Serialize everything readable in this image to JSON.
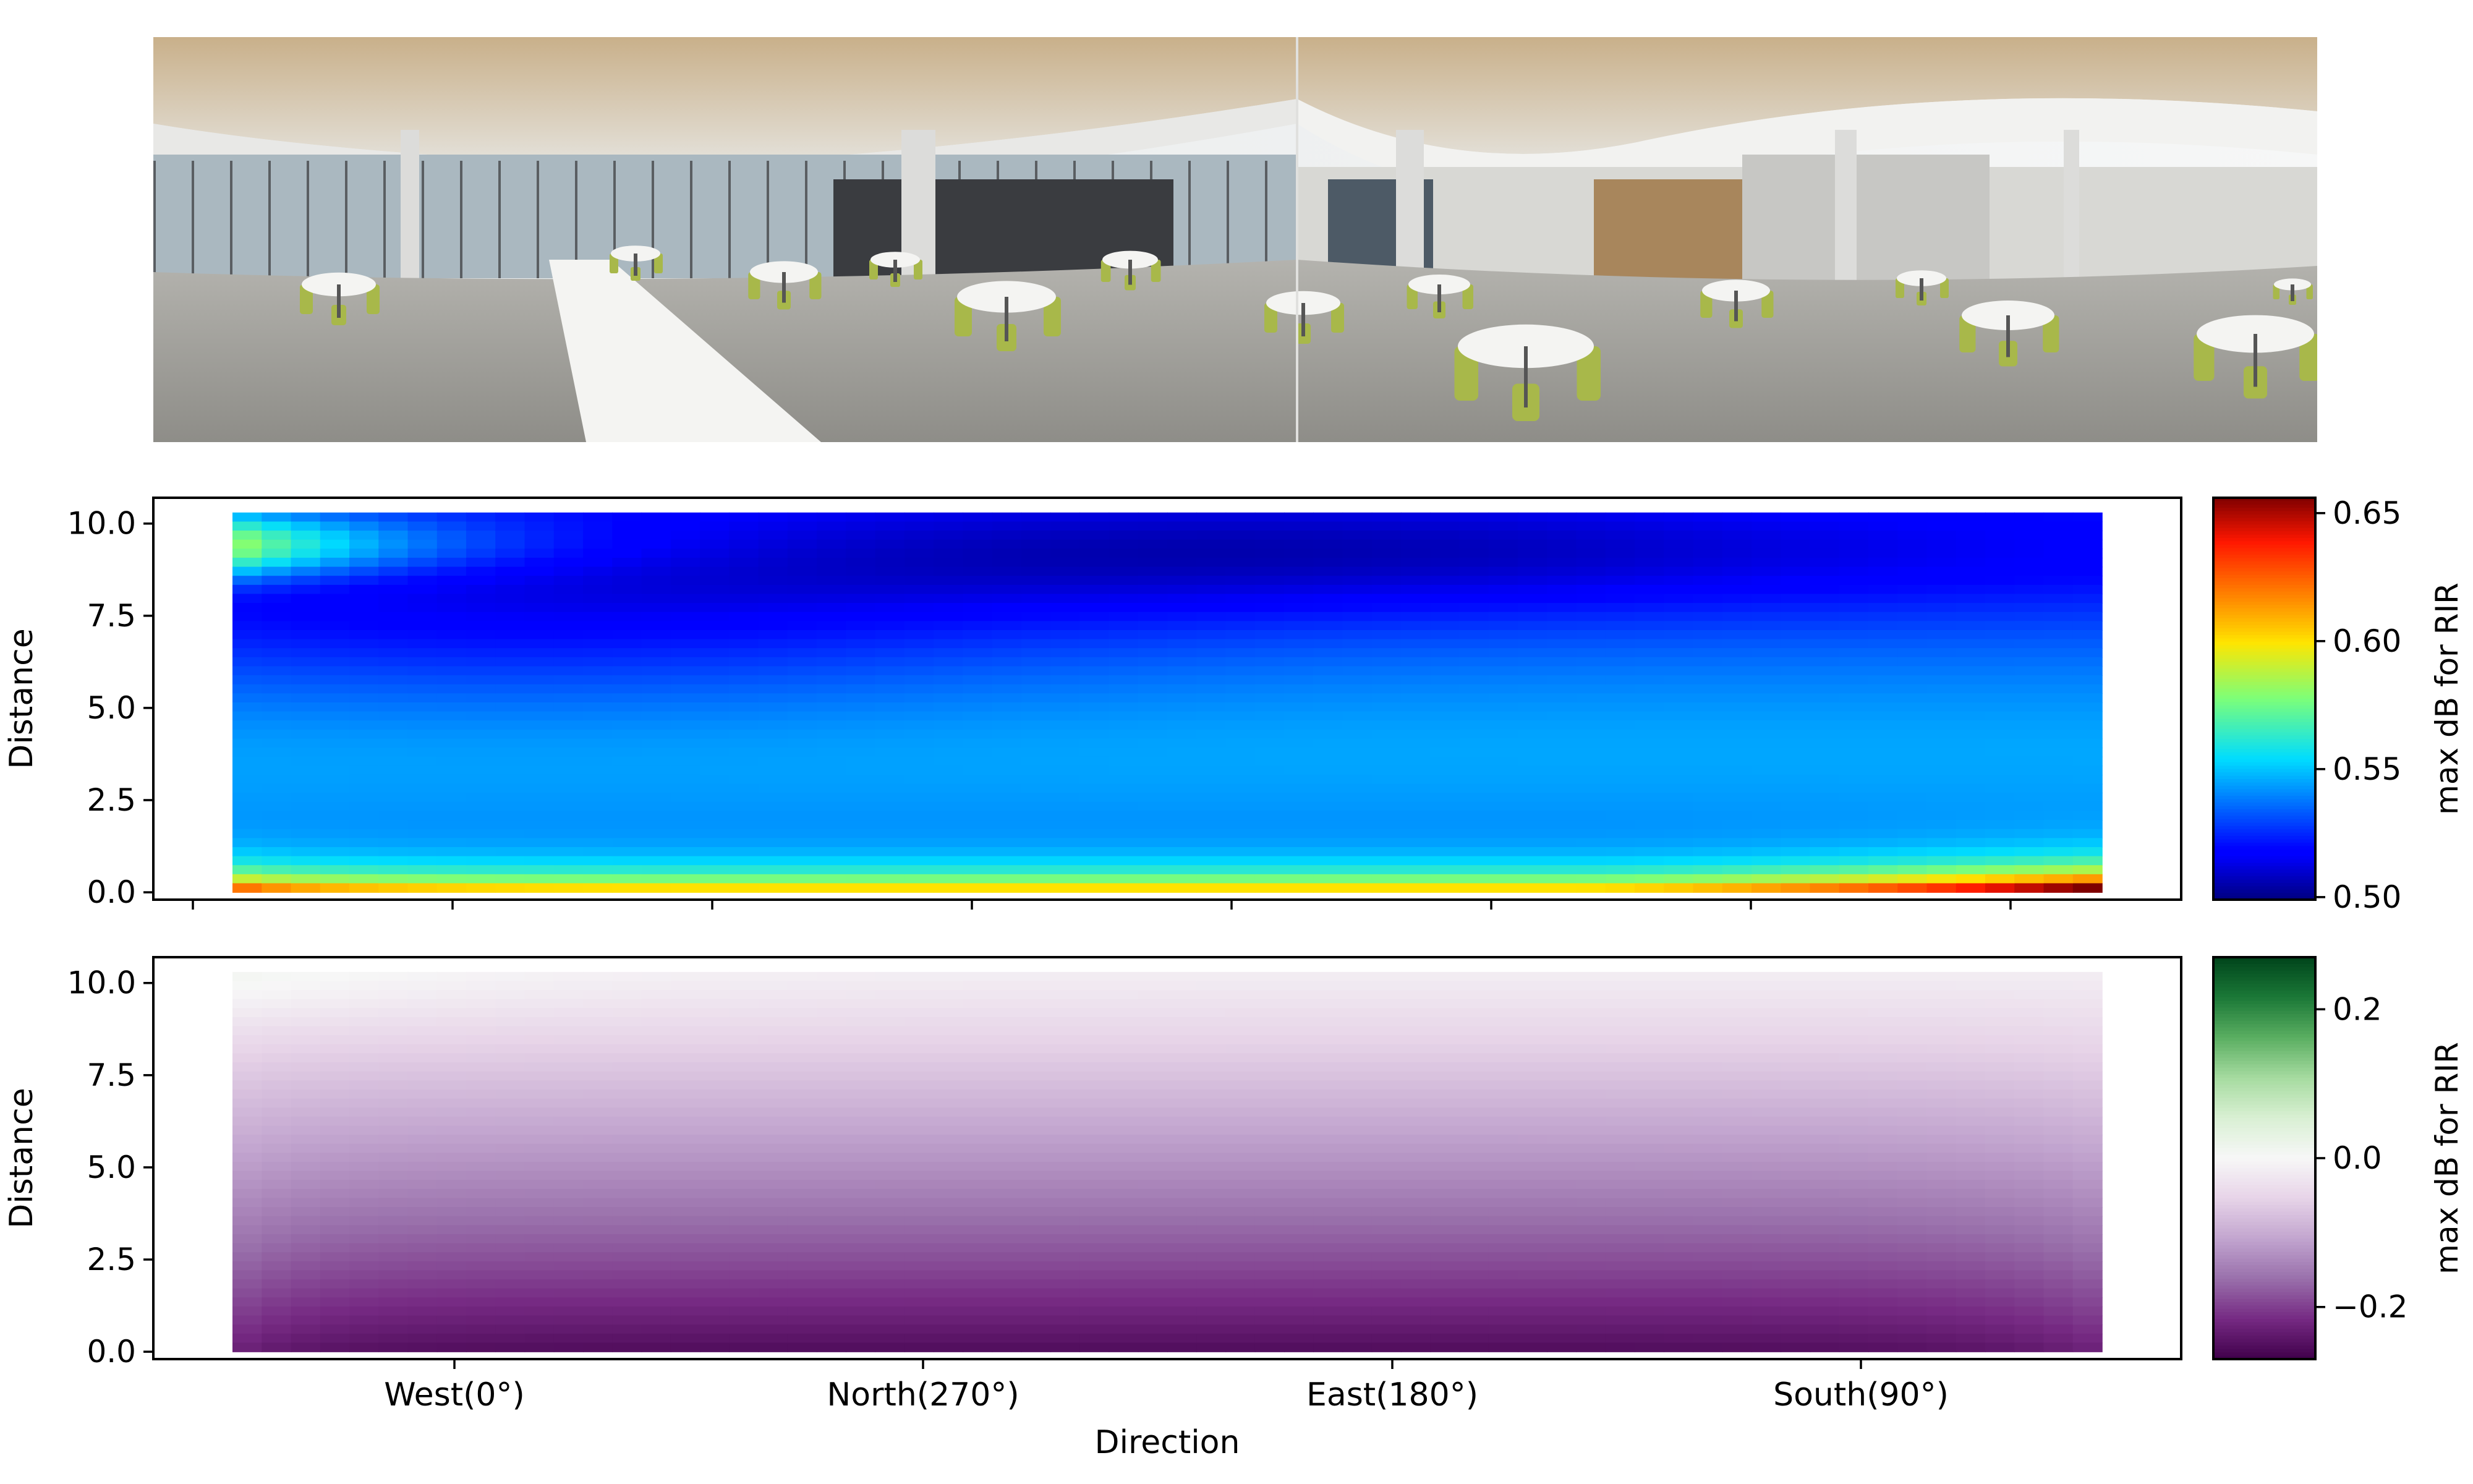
{
  "panorama": {
    "description_icon": "atrium-panorama-photo",
    "colors": {
      "ceiling": "#d9d6cf",
      "wood": "#a8865c",
      "wall": "#e8e8e6",
      "glass": "#aab8c0",
      "floor": "#9e9d98",
      "chair": "#a8b84a",
      "table": "#f4f4f2",
      "column": "#dcdcda",
      "dark": "#3a3c40"
    }
  },
  "chart_data": [
    {
      "type": "heatmap",
      "ylabel": "Distance",
      "xlabel": "",
      "x_ticks": [
        "",
        "",
        "",
        "",
        "",
        "",
        "",
        ""
      ],
      "y_ticks": [
        "0.0",
        "2.5",
        "5.0",
        "7.5",
        "10.0"
      ],
      "y_tick_values": [
        0,
        2.5,
        5,
        7.5,
        10
      ],
      "ylim": [
        -0.2,
        10.7
      ],
      "colormap": "jet",
      "colorbar": {
        "label": "max dB for RIR",
        "range": [
          0.499,
          0.656
        ],
        "ticks": [
          "0.50",
          "0.55",
          "0.60",
          "0.65"
        ],
        "tick_values": [
          0.5,
          0.55,
          0.6,
          0.65
        ]
      },
      "grid": false
    },
    {
      "type": "heatmap",
      "ylabel": "Distance",
      "xlabel": "Direction",
      "x_ticks": [
        "West(0°)",
        "North(270°)",
        "East(180°)",
        "South(90°)"
      ],
      "y_ticks": [
        "0.0",
        "2.5",
        "5.0",
        "7.5",
        "10.0"
      ],
      "y_tick_values": [
        0,
        2.5,
        5,
        7.5,
        10
      ],
      "ylim": [
        -0.2,
        10.7
      ],
      "colormap": "PRGn",
      "colorbar": {
        "label": "max dB for RIR",
        "range": [
          -0.27,
          0.27
        ],
        "ticks": [
          "0.2",
          "0.0",
          "−0.2"
        ],
        "tick_values": [
          0.2,
          0.0,
          -0.2
        ]
      },
      "grid": false
    }
  ]
}
